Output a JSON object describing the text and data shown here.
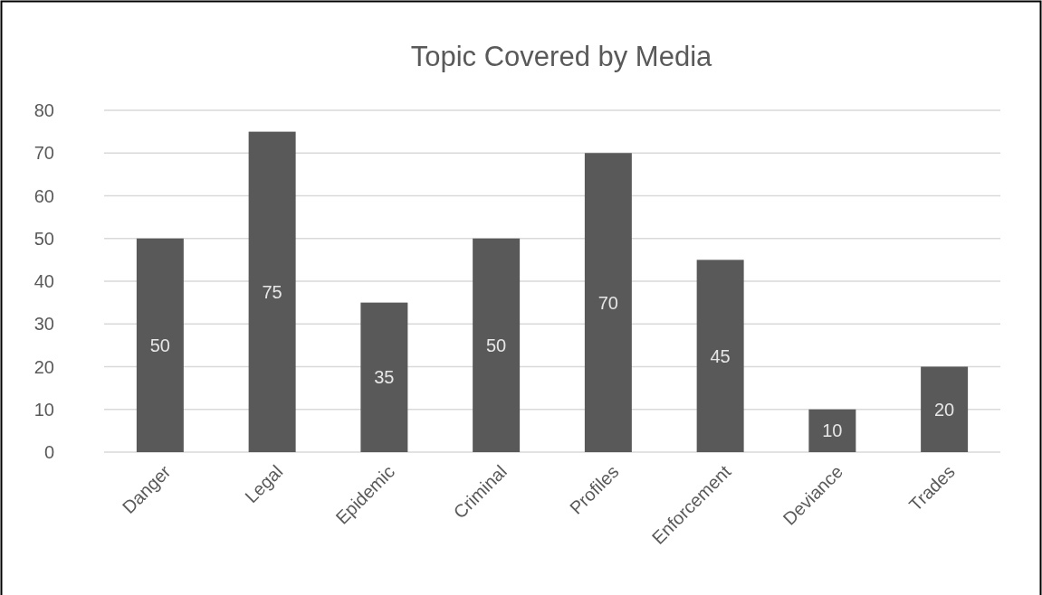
{
  "chart_data": {
    "type": "bar",
    "title": "Topic Covered by Media",
    "categories": [
      "Danger",
      "Legal",
      "Epidemic",
      "Criminal",
      "Profiles",
      "Enforcement",
      "Deviance",
      "Trades"
    ],
    "values": [
      50,
      75,
      35,
      50,
      70,
      45,
      10,
      20
    ],
    "color": "#595959",
    "ylim": [
      0,
      80
    ],
    "yticks": [
      0,
      10,
      20,
      30,
      40,
      50,
      60,
      70,
      80
    ],
    "grid": "y",
    "data_labels": true
  }
}
